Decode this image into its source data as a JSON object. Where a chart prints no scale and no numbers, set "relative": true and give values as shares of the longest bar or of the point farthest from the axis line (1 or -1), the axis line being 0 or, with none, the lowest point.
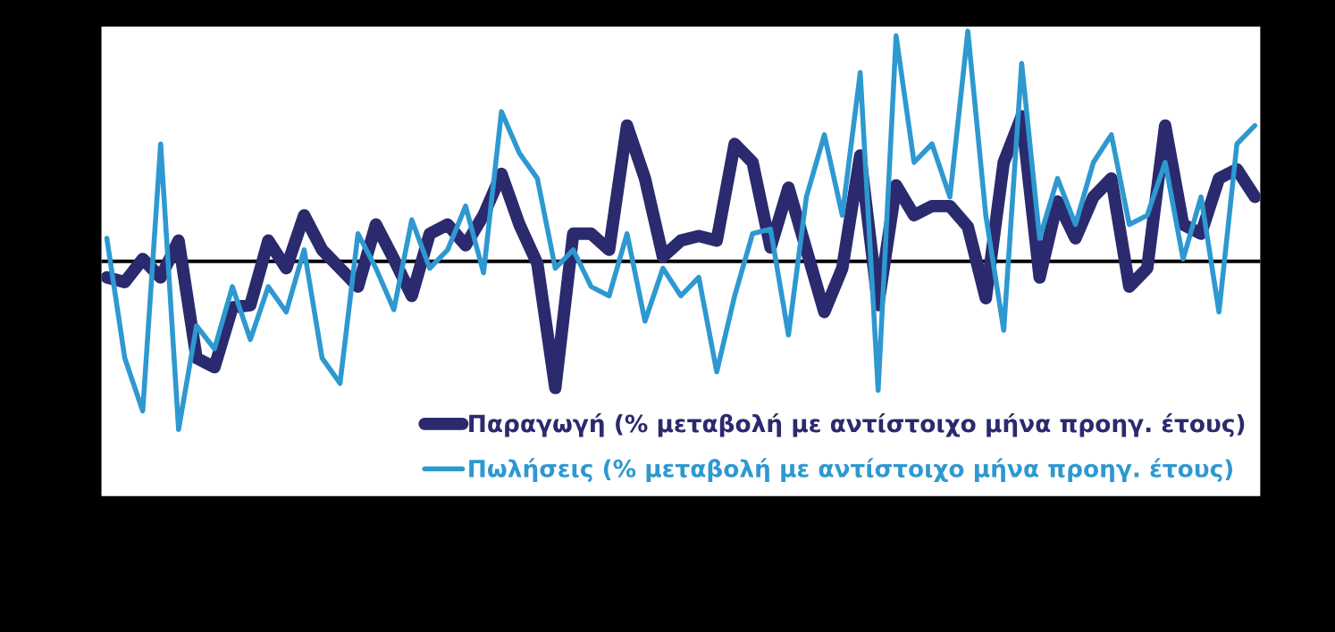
{
  "chart_data": {
    "type": "line",
    "relative": true,
    "legend": "bottom right",
    "categories": [
      null,
      null,
      null,
      null,
      null,
      null,
      null,
      null,
      null,
      null,
      null,
      null,
      null,
      null,
      null,
      null,
      null,
      null,
      null,
      null,
      null,
      null,
      null,
      null,
      null,
      null,
      null,
      null,
      null,
      null,
      null,
      null,
      null,
      null,
      null,
      null,
      null,
      null,
      null,
      null,
      null,
      null,
      null,
      null,
      null,
      null,
      null,
      null,
      null,
      null,
      null,
      null,
      null,
      null,
      null,
      null,
      null,
      null,
      null,
      null,
      null,
      null,
      null,
      null,
      null
    ],
    "series": [
      {
        "name": "Παραγωγή (% μεταβολή με αντίστοιχο μήνα προηγ. έτους)",
        "color": "#2b2a6e",
        "values": [
          -0.07,
          -0.09,
          0.01,
          -0.07,
          0.09,
          -0.42,
          -0.46,
          -0.2,
          -0.19,
          0.09,
          -0.03,
          0.2,
          0.05,
          -0.03,
          -0.11,
          0.16,
          0.01,
          -0.15,
          0.12,
          0.16,
          0.07,
          0.2,
          0.38,
          0.16,
          -0.01,
          -0.55,
          0.12,
          0.12,
          0.05,
          0.59,
          0.36,
          0.02,
          0.09,
          0.11,
          0.09,
          0.51,
          0.43,
          0.06,
          0.32,
          0.05,
          -0.22,
          -0.03,
          0.46,
          -0.19,
          0.33,
          0.2,
          0.24,
          0.24,
          0.15,
          -0.16,
          0.43,
          0.63,
          -0.07,
          0.26,
          0.1,
          0.28,
          0.36,
          -0.11,
          -0.03,
          0.59,
          0.16,
          0.12,
          0.36,
          0.4,
          0.28
        ]
      },
      {
        "name": "Πωλήσεις (% μεταβολή με αντίστοιχο μήνα προηγ. έτους)",
        "color": "#2e98d0",
        "values": [
          0.1,
          -0.42,
          -0.65,
          0.51,
          -0.73,
          -0.28,
          -0.38,
          -0.11,
          -0.34,
          -0.11,
          -0.22,
          0.05,
          -0.42,
          -0.53,
          0.12,
          -0.03,
          -0.21,
          0.18,
          -0.03,
          0.05,
          0.24,
          -0.05,
          0.65,
          0.47,
          0.36,
          -0.03,
          0.05,
          -0.11,
          -0.15,
          0.12,
          -0.26,
          -0.03,
          -0.15,
          -0.07,
          -0.48,
          -0.15,
          0.12,
          0.14,
          -0.32,
          0.28,
          0.55,
          0.2,
          0.82,
          -0.56,
          0.98,
          0.43,
          0.51,
          0.28,
          1,
          0.2,
          -0.3,
          0.86,
          0.1,
          0.36,
          0.16,
          0.43,
          0.55,
          0.16,
          0.2,
          0.43,
          0.01,
          0.28,
          -0.22,
          0.51,
          0.59
        ]
      }
    ]
  }
}
